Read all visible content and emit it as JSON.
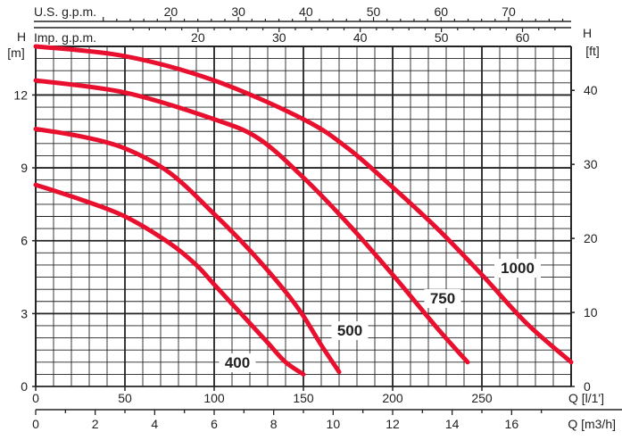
{
  "chart_data": {
    "type": "line",
    "title": "",
    "left_axis": {
      "unit_label_top": "H",
      "unit_label_bottom": "[m]",
      "range": [
        0,
        14
      ],
      "ticks": [
        0,
        3,
        6,
        9,
        12
      ]
    },
    "right_axis": {
      "unit_label_top": "H",
      "unit_label_bottom": "[ft]",
      "range_ft": [
        0,
        45.9
      ],
      "ticks": [
        0,
        10,
        20,
        30,
        40
      ]
    },
    "x_axis": {
      "label": "Q [l/1']",
      "range": [
        0,
        300
      ],
      "ticks": [
        0,
        50,
        100,
        150,
        200,
        250
      ]
    },
    "x_axis_bottom": {
      "label": "Q [m3/h]",
      "range_m3h": [
        0,
        18
      ],
      "ticks": [
        0,
        2,
        4,
        6,
        8,
        10,
        12,
        14,
        16
      ]
    },
    "top_axis_us": {
      "label": "U.S. g.p.m.",
      "ticks": [
        20,
        30,
        40,
        50,
        60,
        70
      ]
    },
    "top_axis_imp": {
      "label": "Imp. g.p.m.",
      "ticks": [
        20,
        30,
        40,
        50,
        60
      ]
    },
    "grid": true,
    "series": [
      {
        "name": "400",
        "color": "#e8102e",
        "x": [
          0,
          25,
          50,
          75,
          90,
          100,
          110,
          120,
          130,
          140,
          150
        ],
        "y": [
          8.3,
          7.7,
          7.0,
          5.9,
          5.0,
          4.2,
          3.4,
          2.6,
          1.8,
          1.0,
          0.5
        ]
      },
      {
        "name": "500",
        "color": "#e8102e",
        "x": [
          0,
          25,
          50,
          75,
          100,
          120,
          140,
          150,
          160,
          170
        ],
        "y": [
          10.6,
          10.3,
          9.8,
          8.8,
          7.1,
          5.6,
          3.9,
          2.9,
          1.7,
          0.6
        ]
      },
      {
        "name": "750",
        "color": "#e8102e",
        "x": [
          0,
          50,
          100,
          125,
          150,
          175,
          200,
          225,
          242
        ],
        "y": [
          12.6,
          12.1,
          11.0,
          10.2,
          8.6,
          6.7,
          4.6,
          2.4,
          1.0
        ]
      },
      {
        "name": "1000",
        "color": "#e8102e",
        "x": [
          0,
          50,
          100,
          150,
          175,
          200,
          225,
          250,
          275,
          300
        ],
        "y": [
          14.0,
          13.6,
          12.6,
          11.0,
          9.8,
          8.2,
          6.5,
          4.6,
          2.6,
          1.0
        ]
      }
    ]
  }
}
